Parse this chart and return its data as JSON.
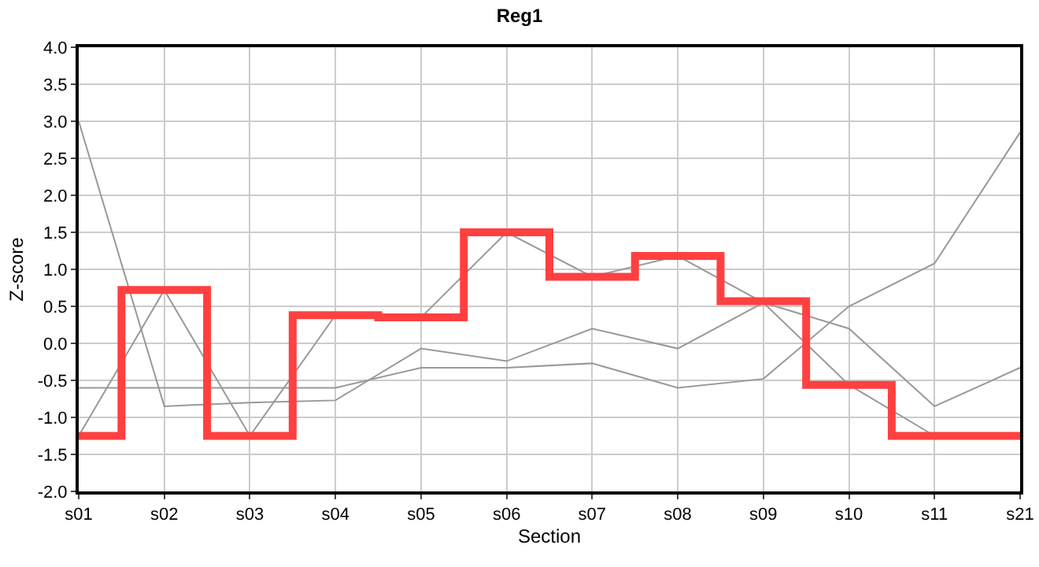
{
  "chart_data": {
    "type": "line",
    "title": "Reg1",
    "xlabel": "Section",
    "ylabel": "Z-score",
    "categories": [
      "s01",
      "s02",
      "s03",
      "s04",
      "s05",
      "s06",
      "s07",
      "s08",
      "s09",
      "s10",
      "s11",
      "s21"
    ],
    "series": [
      {
        "color": "#999999",
        "values": [
          3.0,
          -0.85,
          -0.8,
          -0.77,
          -0.07,
          -0.24,
          0.2,
          -0.07,
          0.55,
          0.2,
          -0.85,
          -0.33
        ]
      },
      {
        "color": "#999999",
        "values": [
          -1.25,
          0.72,
          -1.25,
          0.38,
          0.35,
          1.5,
          0.9,
          1.18,
          0.55,
          -0.56,
          -1.25,
          null
        ]
      },
      {
        "color": "#999999",
        "values": [
          -0.6,
          -0.6,
          -0.6,
          -0.6,
          -0.33,
          -0.33,
          -0.27,
          -0.6,
          -0.48,
          0.5,
          1.08,
          2.85
        ]
      },
      {
        "type": "step",
        "color": "#ff4040",
        "values": [
          -1.25,
          0.72,
          -1.25,
          0.38,
          0.35,
          1.5,
          0.9,
          1.18,
          0.57,
          -0.56,
          -1.25,
          -1.25
        ]
      }
    ],
    "ylim": [
      -2.0,
      4.0
    ],
    "yticks": [
      {
        "value": -2,
        "label": "-2.0"
      },
      {
        "value": -1.5,
        "label": "-1.5"
      },
      {
        "value": -1,
        "label": "-1.0"
      },
      {
        "value": -0.5,
        "label": "-0.5"
      },
      {
        "value": 0,
        "label": "0.0"
      },
      {
        "value": 0.5,
        "label": "0.5"
      },
      {
        "value": 1,
        "label": "1.0"
      },
      {
        "value": 1.5,
        "label": "1.5"
      },
      {
        "value": 2,
        "label": "2.0"
      },
      {
        "value": 2.5,
        "label": "2.5"
      },
      {
        "value": 3,
        "label": "3.0"
      },
      {
        "value": 3.5,
        "label": "3.5"
      },
      {
        "value": 4,
        "label": "4.0"
      }
    ],
    "grid": true
  }
}
